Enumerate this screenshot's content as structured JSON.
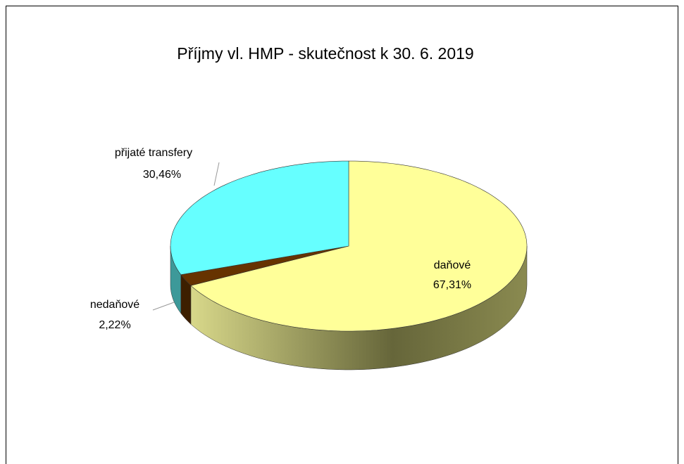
{
  "chart_data": {
    "type": "pie3d",
    "title": "Příjmy vl. HMP - skutečnost k 30. 6. 2019",
    "categories": [
      "daňové",
      "nedaňové",
      "přijaté transfery"
    ],
    "values": [
      67.31,
      2.22,
      30.46
    ],
    "value_labels": [
      "67,31%",
      "2,22%",
      "30,46%"
    ],
    "colors": [
      "#ffff99",
      "#663300",
      "#66ffff"
    ]
  }
}
